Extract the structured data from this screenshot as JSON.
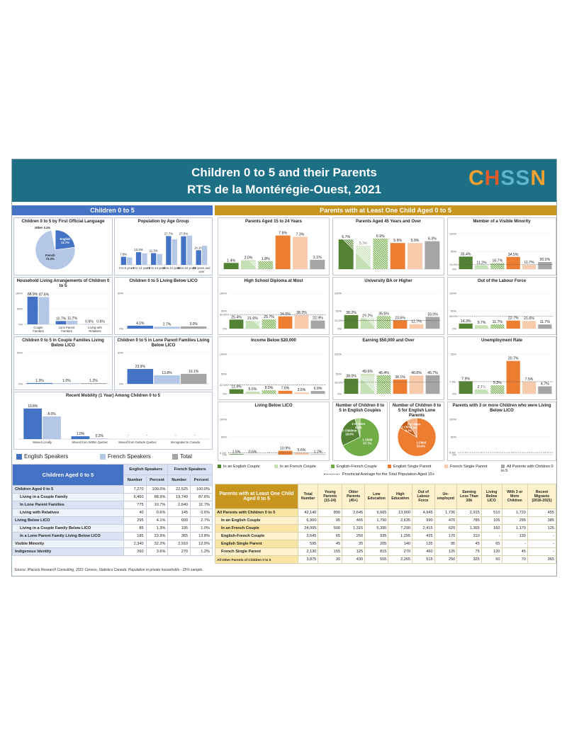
{
  "header": {
    "title_line1": "Children 0 to 5 and their Parents",
    "title_line2": "RTS de la Montérégie-Ouest, 2021",
    "logo_text": "CHSSN"
  },
  "left_section_title": "Children 0 to 5",
  "right_section_title": "Parents with at Least One Child Aged 0 to 5",
  "colors": {
    "english": "#4472c4",
    "french": "#b4c7e7",
    "total": "#a5a5a5",
    "in_english_couple": "#548235",
    "in_french_couple": "#c5e0b4",
    "english_french_couple": "#70ad47",
    "english_single": "#ed7d31",
    "french_single": "#f8cbad",
    "all_parents": "#a5a5a5"
  },
  "legend_left": {
    "english": "English Speakers",
    "french": "French Speakers",
    "total": "Total"
  },
  "legend_right": {
    "items": [
      "In an English Couple",
      "In an French Couple",
      "English-French Couple",
      "English Single Parent",
      "French Single Parent",
      "All Parents with Children 0 to 5"
    ],
    "provincial": "Provincial Average for the Total Population Aged 15+"
  },
  "chart_data": [
    {
      "id": "flol",
      "type": "pie",
      "title": "Children 0 to 5 by First Official Language",
      "categories": [
        "English",
        "French",
        "Other"
      ],
      "values": [
        22.7,
        73.3,
        3.1
      ],
      "labels": [
        "English\n22.7%",
        "French\n73.3%",
        "Other 3.1%"
      ]
    },
    {
      "id": "agegroup",
      "type": "bar",
      "title": "Population by Age Group",
      "categories": [
        "0 to 5 years",
        "6 to 14 years",
        "15 to 24 years",
        "25 to 44 years",
        "45 to 64 years",
        "65 years and over"
      ],
      "series": [
        {
          "name": "English Speakers",
          "values": [
            7.8,
            12.2,
            11.3,
            27.7,
            27.5,
            14.1
          ]
        },
        {
          "name": "French Speakers",
          "values": [
            7.2,
            11.1,
            10.5,
            24.6,
            28.2,
            18.5
          ]
        }
      ],
      "value_labels": [
        "7.8%",
        "12.2%",
        "11.3%",
        "27.7%",
        "27.5%",
        "14.1%"
      ],
      "ylim": [
        0,
        30
      ]
    },
    {
      "id": "living",
      "type": "bar",
      "title": "Household Living Arrangements of Children 0 to 5",
      "categories": [
        "Couple Families",
        "Lone Parent Families",
        "Living with Relatives"
      ],
      "series": [
        {
          "name": "English Speakers",
          "values": [
            88.9,
            10.7,
            0.6
          ]
        },
        {
          "name": "French Speakers",
          "values": [
            87.6,
            11.7,
            0.6
          ]
        }
      ],
      "labels": [
        "88.9%",
        "87.6%",
        "10.7%",
        "11.7%",
        "0.6%",
        "0.6%"
      ],
      "yticks": [
        "100%",
        "50%",
        "0%"
      ],
      "ylim": [
        0,
        100
      ]
    },
    {
      "id": "lico",
      "type": "bar",
      "title": "Children 0 to 5 Living Below LICO",
      "categories": [
        ""
      ],
      "series": [
        {
          "name": "English Speakers",
          "values": [
            4.1
          ]
        },
        {
          "name": "French Speakers",
          "values": [
            2.7
          ]
        },
        {
          "name": "Total",
          "values": [
            3.0
          ]
        }
      ],
      "labels": [
        "4.1%",
        "2.7%",
        "3.0%"
      ],
      "yticks": [
        "50%",
        "0%"
      ],
      "ylim": [
        0,
        50
      ]
    },
    {
      "id": "licocouple",
      "type": "bar",
      "title": "Children 0 to 5 in Couple Families Living Below LICO",
      "categories": [
        ""
      ],
      "series": [
        {
          "name": "English Speakers",
          "values": [
            1.3
          ]
        },
        {
          "name": "French Speakers",
          "values": [
            1.0
          ]
        },
        {
          "name": "Total",
          "values": [
            1.2
          ]
        }
      ],
      "labels": [
        "1.3%",
        "1.0%",
        "1.2%"
      ],
      "yticks": [
        "50%",
        "0%"
      ],
      "ylim": [
        0,
        50
      ]
    },
    {
      "id": "licolone",
      "type": "bar",
      "title": "Children 0 to 5 in Lone Parent Families Living Below LICO",
      "categories": [
        ""
      ],
      "series": [
        {
          "name": "English Speakers",
          "values": [
            23.9
          ]
        },
        {
          "name": "French Speakers",
          "values": [
            13.8
          ]
        },
        {
          "name": "Total",
          "values": [
            16.1
          ]
        }
      ],
      "labels": [
        "23.9%",
        "13.8%",
        "16.1%"
      ],
      "yticks": [
        "50%",
        "0%"
      ],
      "ylim": [
        0,
        50
      ]
    },
    {
      "id": "mobility",
      "type": "bar",
      "title": "Recent Mobility (1 Year) Among Children 0 to 5",
      "categories": [
        "Moved Locally",
        "Moved from Within Quebec",
        "Moved from Outside Quebec",
        "Immigrated to Canada"
      ],
      "series": [
        {
          "name": "English Speakers",
          "values": [
            10.8,
            1.0,
            0,
            0
          ]
        },
        {
          "name": "French Speakers",
          "values": [
            8.0,
            0.2,
            0,
            0
          ]
        }
      ],
      "labels": [
        "10.8%",
        "8.0%",
        "1.0%",
        "0.2%",
        "-",
        "-",
        "-",
        "-"
      ],
      "ylim": [
        0,
        12
      ]
    },
    {
      "id": "age1524",
      "type": "bar",
      "title": "Parents Aged 15 to 24 Years",
      "categories": [
        "In an English Couple",
        "In an French Couple",
        "English-French Couple",
        "English Single Parent",
        "French Single Parent",
        "All Parents with Children 0 to 5"
      ],
      "values": [
        1.4,
        2.0,
        1.8,
        7.6,
        7.3,
        2.1
      ],
      "labels": [
        "1.4%",
        "2.0%",
        "1.8%",
        "7.6%",
        "7.3%",
        "2.1%"
      ],
      "ylim": [
        0,
        8
      ]
    },
    {
      "id": "age45",
      "type": "bar",
      "title": "Parents Aged 45 Years and Over",
      "categories": [
        "In an English Couple",
        "In an French Couple",
        "English-French Couple",
        "English Single Parent",
        "French Single Parent",
        "All Parents with Children 0 to 5"
      ],
      "values": [
        6.7,
        5.3,
        6.9,
        5.9,
        5.9,
        6.3
      ],
      "labels": [
        "6.7%",
        "5.3%",
        "6.9%",
        "5.9%",
        "5.9%",
        "6.3%"
      ],
      "ylim": [
        0,
        8
      ]
    },
    {
      "id": "vismin",
      "type": "bar",
      "title": "Member of a Visible Minority",
      "categories": [
        "In an English Couple",
        "In an French Couple",
        "English-French Couple",
        "English Single Parent",
        "French Single Parent",
        "All Parents with Children 0 to 5"
      ],
      "values": [
        35.4,
        11.2,
        16.7,
        34.5,
        11.7,
        20.0
      ],
      "labels": [
        "35.4%",
        "11.2%",
        "16.7%",
        "34.5%",
        "11.7%",
        "20.0%"
      ],
      "yticks": [
        "100%",
        "50%",
        "0%"
      ],
      "ylim": [
        0,
        100
      ],
      "provincial": 13.0,
      "provincial_label": "13.0%"
    },
    {
      "id": "hs",
      "type": "bar",
      "title": "High School Diploma at Most",
      "categories": [
        "In an English Couple",
        "In an French Couple",
        "English-French Couple",
        "English Single Parent",
        "French Single Parent",
        "All Parents with Children 0 to 5"
      ],
      "values": [
        25.4,
        21.6,
        25.7,
        34.5,
        38.3,
        22.9
      ],
      "labels": [
        "25.4%",
        "21.6%",
        "25.7%",
        "34.5%",
        "38.3%",
        "22.9%"
      ],
      "yticks": [
        "100%",
        "50%",
        "0%"
      ],
      "ylim": [
        0,
        100
      ],
      "provincial": 39.6,
      "provincial_label": "39.6%"
    },
    {
      "id": "uni",
      "type": "bar",
      "title": "University BA or Higher",
      "categories": [
        "In an English Couple",
        "In an French Couple",
        "English-French Couple",
        "English Single Parent",
        "French Single Parent",
        "All Parents with Children 0 to 5"
      ],
      "values": [
        38.2,
        29.2,
        35.5,
        23.5,
        12.7,
        33.0
      ],
      "labels": [
        "38.2%",
        "29.2%",
        "35.5%",
        "23.5%",
        "12.7%",
        "33.0%"
      ],
      "yticks": [
        "100%",
        "50%",
        "0%"
      ],
      "ylim": [
        0,
        100
      ],
      "provincial": 23.3,
      "provincial_label": "23.3%"
    },
    {
      "id": "olf",
      "type": "bar",
      "title": "Out of the Labour Force",
      "categories": [
        "In an English Couple",
        "In an French Couple",
        "English-French Couple",
        "English Single Parent",
        "French Single Parent",
        "All Parents with Children 0 to 5"
      ],
      "values": [
        14.3,
        9.7,
        11.7,
        22.7,
        21.6,
        11.7
      ],
      "labels": [
        "14.3%",
        "9.7%",
        "11.7%",
        "22.7%",
        "21.6%",
        "11.7%"
      ],
      "yticks": [
        "100%",
        "50%",
        "0%"
      ],
      "ylim": [
        0,
        100
      ],
      "provincial": 35.0,
      "provincial_label": "35.0%"
    },
    {
      "id": "inc20",
      "type": "bar",
      "title": "Income Below $20,000",
      "categories": [
        "In an English Couple",
        "In an French Couple",
        "English-French Couple",
        "English Single Parent",
        "French Single Parent",
        "All Parents with Children 0 to 5"
      ],
      "values": [
        11.4,
        5.5,
        8.5,
        7.6,
        3.5,
        6.9
      ],
      "labels": [
        "11.4%",
        "5.5%",
        "8.5%",
        "7.6%",
        "3.5%",
        "6.9%"
      ],
      "yticks": [
        "100%",
        "50%",
        "0%"
      ],
      "ylim": [
        0,
        100
      ],
      "provincial": 22.6,
      "provincial_label": "22.6%"
    },
    {
      "id": "inc50",
      "type": "bar",
      "title": "Earning $50,000 and Over",
      "categories": [
        "In an English Couple",
        "In an French Couple",
        "English-French Couple",
        "English Single Parent",
        "French Single Parent",
        "All Parents with Children 0 to 5"
      ],
      "values": [
        38.0,
        49.6,
        46.4,
        36.1,
        46.0,
        46.7
      ],
      "labels": [
        "38.0%",
        "49.6%",
        "46.4%",
        "36.1%",
        "46.0%",
        "46.7%"
      ],
      "yticks": [
        "100%",
        "50%",
        "0%"
      ],
      "ylim": [
        0,
        100
      ],
      "provincial": 29.0,
      "provincial_label": "29.0%"
    },
    {
      "id": "unemp",
      "type": "bar",
      "title": "Unemployment Rate",
      "categories": [
        "In an English Couple",
        "In an French Couple",
        "English-French Couple",
        "English Single Parent",
        "French Single Parent",
        "All Parents with Children 0 to 5"
      ],
      "values": [
        7.9,
        2.7,
        5.3,
        20.7,
        7.5,
        4.7
      ],
      "labels": [
        "7.9%",
        "2.7%",
        "5.3%",
        "20.7%",
        "7.5%",
        "4.7%"
      ],
      "yticks": [
        "25%",
        "0%"
      ],
      "ylim": [
        0,
        25
      ],
      "provincial": 7.6,
      "provincial_label": "7.6%"
    },
    {
      "id": "belowlico",
      "type": "bar",
      "title": "Living Below LICO",
      "categories": [
        "In an English Couple",
        "In an French Couple",
        "English-French Couple",
        "English Single Parent",
        "French Single Parent",
        "All Parents with Children 0 to 5"
      ],
      "values": [
        1.5,
        0.6,
        0,
        10.9,
        5.6,
        1.2
      ],
      "labels": [
        "1.5%",
        "0.6%",
        "-",
        "10.9%",
        "5.6%",
        "1.2%"
      ],
      "yticks": [
        "100%",
        "50%",
        "0%"
      ],
      "ylim": [
        0,
        100
      ],
      "provincial": 5.1,
      "provincial_label": "5.1%"
    },
    {
      "id": "kidscouple",
      "type": "pie",
      "title": "Number of Children 0 to 5 in English Couples",
      "categories": [
        "1 Child",
        "2 Children",
        "3 or More"
      ],
      "values": [
        67.7,
        28.0,
        4.3
      ],
      "labels": [
        "1 Child\n67.7%",
        "2 Children\n28.0%",
        "3 or More\n4.3%"
      ]
    },
    {
      "id": "kidslone",
      "type": "pie",
      "title": "Number of Children 0 to 5 for English Lone Parents",
      "categories": [
        "1 Child",
        "2 Children",
        "3 or More"
      ],
      "values": [
        83.4,
        8.3,
        8.3
      ],
      "labels": [
        "1 Child\n83.4%",
        "2 Children\n8.3%",
        "3 or More\n8.3%"
      ]
    },
    {
      "id": "threeplus",
      "type": "bar",
      "title": "Parents with 3 or more Children who were Living Below LICO",
      "categories": [
        "In an English Couple",
        "In an French Couple",
        "English-French Couple",
        "English Single Parent",
        "French Single Parent",
        "All Parents with Children 0 to 5"
      ],
      "values": [
        0,
        0,
        0,
        0,
        0,
        0
      ],
      "labels": [
        "-",
        "-",
        "-",
        "-",
        "-",
        "-"
      ],
      "yticks": [
        "100%",
        "50%",
        "0%"
      ],
      "ylim": [
        0,
        100
      ],
      "provincial": 5.8,
      "provincial_label": "5.8%"
    }
  ],
  "left_table": {
    "corner": "Children Aged 0 to 5",
    "group_headers": [
      "English Speakers",
      "French Speakers"
    ],
    "sub_headers": [
      "Number",
      "Percent",
      "Number",
      "Percent"
    ],
    "rows": [
      {
        "label": "Children Aged 0 to 5",
        "cells": [
          "7,270",
          "100.0%",
          "22,525",
          "100.0%"
        ]
      },
      {
        "label": "Living in a Couple Family",
        "cells": [
          "6,460",
          "88.9%",
          "19,740",
          "87.6%"
        ]
      },
      {
        "label": "In Lone Parent Families",
        "cells": [
          "775",
          "10.7%",
          "2,640",
          "11.7%"
        ]
      },
      {
        "label": "Living with Relatives",
        "cells": [
          "40",
          "0.6%",
          "145",
          "0.6%"
        ]
      },
      {
        "label": "Living Below LICO",
        "cells": [
          "295",
          "4.1%",
          "600",
          "2.7%"
        ]
      },
      {
        "label": "Living in a Couple Family Below LICO",
        "cells": [
          "85",
          "1.3%",
          "195",
          "1.0%"
        ]
      },
      {
        "label": "In a Lone Parent Family Living Below LICO",
        "cells": [
          "185",
          "23.9%",
          "365",
          "13.8%"
        ]
      },
      {
        "label": "Visible Minority",
        "cells": [
          "2,340",
          "32.2%",
          "2,910",
          "12.9%"
        ]
      },
      {
        "label": "Indigenous Identity",
        "cells": [
          "260",
          "3.6%",
          "270",
          "1.2%"
        ]
      }
    ]
  },
  "right_table": {
    "corner": "Parents with at Least One Child Aged 0 to 5",
    "headers": [
      "Total Number",
      "Young Parents (15-24)",
      "Older Parents (45+)",
      "Low Education",
      "High Education",
      "Out of Labour Force",
      "Un-employed",
      "Earning Less Than 20k",
      "Living Below LICO",
      "With 3 or More Children",
      "Recent Migrants (2016-2021)"
    ],
    "rows": [
      {
        "label": "All Parents with Children 0 to 5",
        "cells": [
          "42,140",
          "890",
          "2,645",
          "9,665",
          "13,900",
          "4,945",
          "1,730",
          "2,915",
          "510",
          "1,720",
          "455"
        ]
      },
      {
        "label": "In an English Couple",
        "cells": [
          "6,900",
          "95",
          "465",
          "1,750",
          "2,635",
          "990",
          "470",
          "785",
          "105",
          "295",
          "385"
        ]
      },
      {
        "label": "In an French Couple",
        "cells": [
          "24,995",
          "500",
          "1,315",
          "5,395",
          "7,290",
          "2,415",
          "620",
          "1,365",
          "160",
          "1,170",
          "125"
        ]
      },
      {
        "label": "English-French Couple",
        "cells": [
          "3,645",
          "65",
          "250",
          "935",
          "1,295",
          "425",
          "170",
          "310",
          "-",
          "130",
          "-"
        ]
      },
      {
        "label": "English Single Parent",
        "cells": [
          "595",
          "45",
          "35",
          "205",
          "140",
          "135",
          "95",
          "45",
          "65",
          "-",
          "-"
        ]
      },
      {
        "label": "French Single Parent",
        "cells": [
          "2,130",
          "155",
          "125",
          "815",
          "270",
          "460",
          "125",
          "75",
          "120",
          "45",
          "-"
        ]
      },
      {
        "label": "All Other Parents of Children 0 to 5",
        "cells": [
          "3,875",
          "30",
          "430",
          "555",
          "2,265",
          "515",
          "250",
          "325",
          "50",
          "70",
          "365"
        ]
      }
    ]
  },
  "source": "Source: IPacock Research Consulting, 2021 Census, Statistics Canada. Population in private households - 25% sample."
}
